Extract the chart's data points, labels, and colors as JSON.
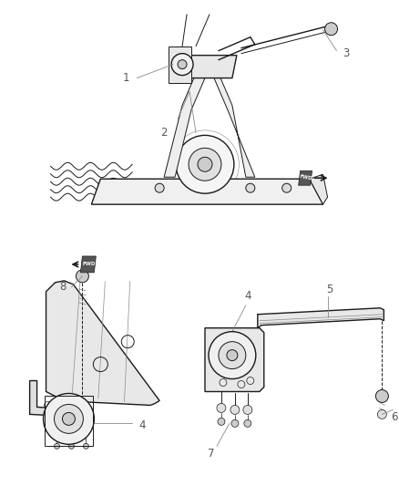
{
  "background_color": "#ffffff",
  "fig_width": 4.38,
  "fig_height": 5.33,
  "dpi": 100,
  "line_color": "#1a1a1a",
  "label_color": "#555555",
  "label_fontsize": 8.5,
  "label_fontsize_small": 7
}
